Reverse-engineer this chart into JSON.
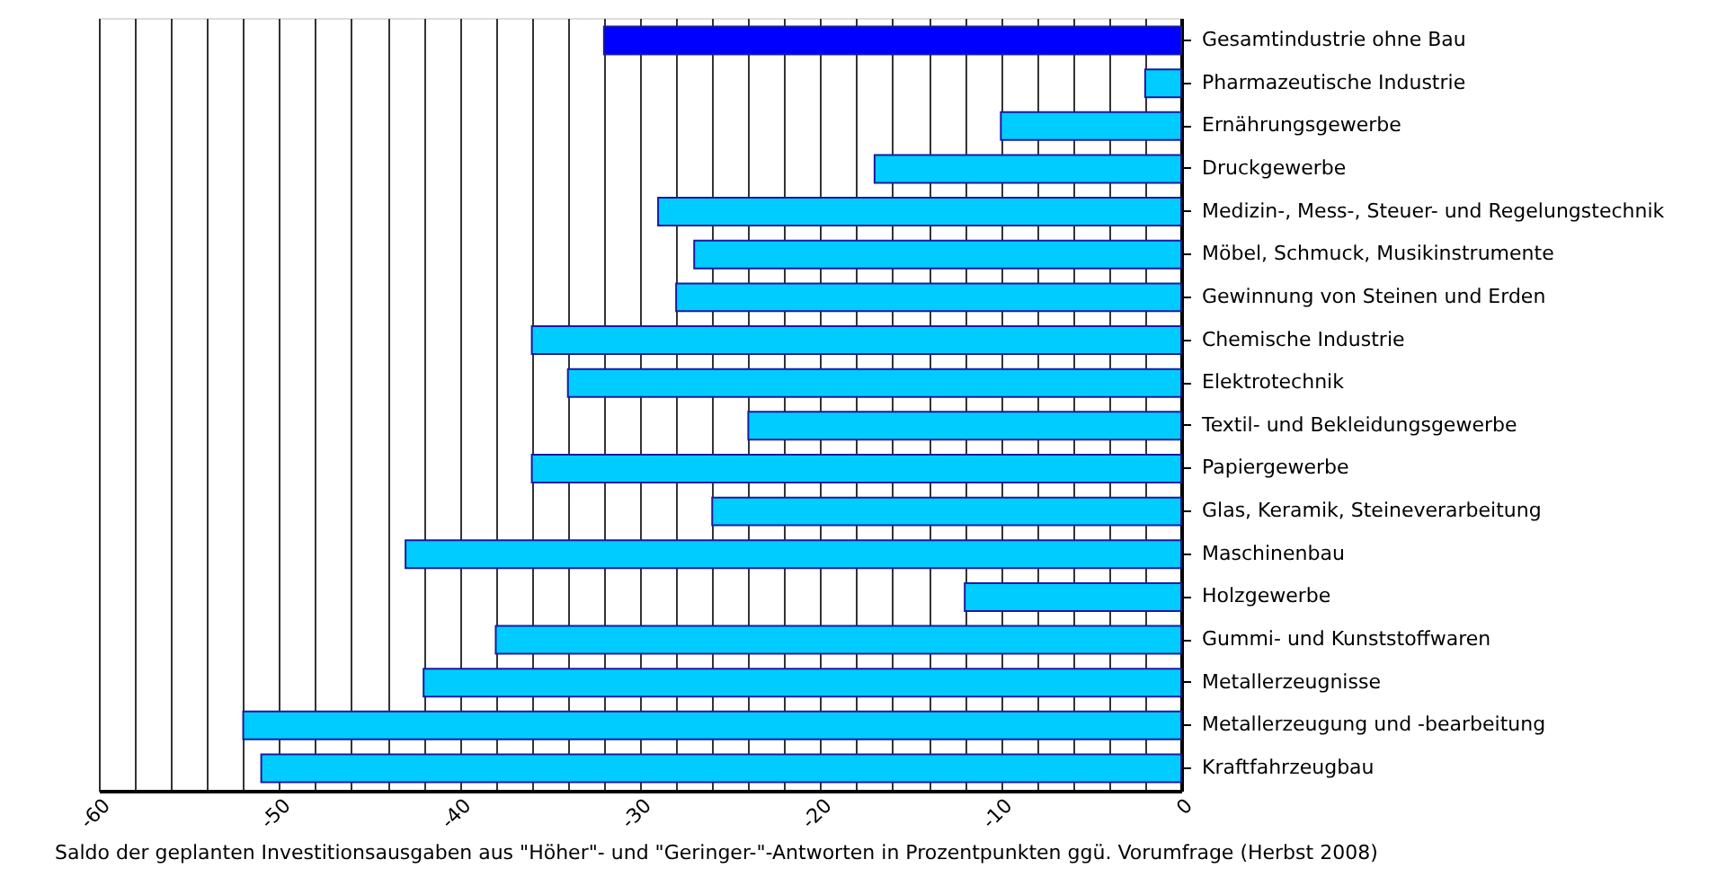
{
  "chart_data": {
    "type": "bar",
    "orientation": "horizontal",
    "categories": [
      "Gesamtindustrie ohne Bau",
      "Pharmazeutische Industrie",
      "Ernährungsgewerbe",
      "Druckgewerbe",
      "Medizin-, Mess-, Steuer- und Regelungstechnik",
      "Möbel, Schmuck, Musikinstrumente",
      "Gewinnung von Steinen und Erden",
      "Chemische Industrie",
      "Elektrotechnik",
      "Textil- und Bekleidungsgewerbe",
      "Papiergewerbe",
      "Glas, Keramik, Steineverarbeitung",
      "Maschinenbau",
      "Holzgewerbe",
      "Gummi- und Kunststoffwaren",
      "Metallerzeugnisse",
      "Metallerzeugung und -bearbeitung",
      "Kraftfahrzeugbau"
    ],
    "values": [
      -32,
      -2,
      -10,
      -17,
      -29,
      -27,
      -28,
      -36,
      -34,
      -24,
      -36,
      -26,
      -43,
      -12,
      -38,
      -42,
      -52,
      -51
    ],
    "colors": [
      "#0000ff",
      "#00ccff",
      "#00ccff",
      "#00ccff",
      "#00ccff",
      "#00ccff",
      "#00ccff",
      "#00ccff",
      "#00ccff",
      "#00ccff",
      "#00ccff",
      "#00ccff",
      "#00ccff",
      "#00ccff",
      "#00ccff",
      "#00ccff",
      "#00ccff",
      "#00ccff"
    ],
    "xlim": [
      -60,
      0
    ],
    "xticks": [
      -60,
      {
        "value": -58,
        "label": null
      },
      {
        "value": -56,
        "label": null
      },
      {
        "value": -54,
        "label": null
      },
      {
        "value": -52,
        "label": null
      },
      -50,
      {
        "value": -48,
        "label": null
      },
      {
        "value": -46,
        "label": null
      },
      {
        "value": -44,
        "label": null
      },
      {
        "value": -42,
        "label": null
      },
      -40,
      {
        "value": -38,
        "label": null
      },
      {
        "value": -36,
        "label": null
      },
      {
        "value": -34,
        "label": null
      },
      {
        "value": -32,
        "label": null
      },
      -30,
      {
        "value": -28,
        "label": null
      },
      {
        "value": -26,
        "label": null
      },
      {
        "value": -24,
        "label": null
      },
      {
        "value": -22,
        "label": null
      },
      -20,
      {
        "value": -18,
        "label": null
      },
      {
        "value": -16,
        "label": null
      },
      {
        "value": -14,
        "label": null
      },
      {
        "value": -12,
        "label": null
      },
      -10,
      {
        "value": -8,
        "label": null
      },
      {
        "value": -6,
        "label": null
      },
      {
        "value": -4,
        "label": null
      },
      {
        "value": -2,
        "label": null
      },
      0
    ],
    "xlabel": "Saldo der geplanten Investitionsausgaben aus \"Höher\"-  und \"Geringer-\"-Antworten  in Prozentpunkten ggü. Vorumfrage (Herbst 2008)",
    "grid": "x"
  }
}
